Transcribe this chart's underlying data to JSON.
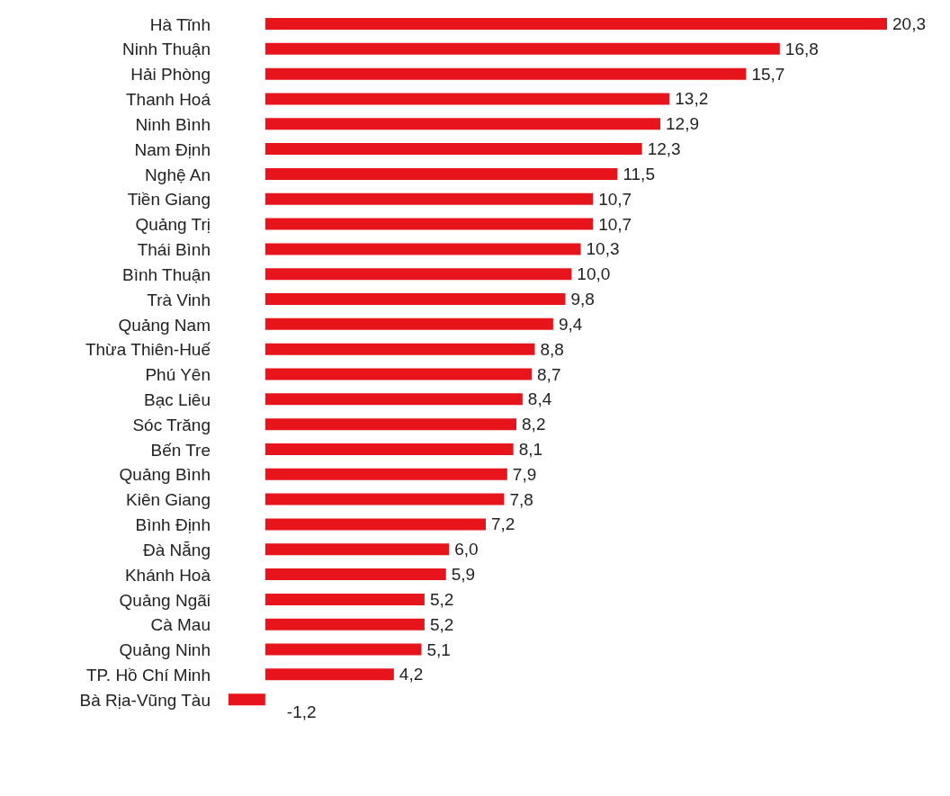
{
  "chart_data": {
    "type": "bar",
    "orientation": "horizontal",
    "color": "#e8141c",
    "categories": [
      "Hà Tĩnh",
      "Ninh Thuận",
      "Hải Phòng",
      "Thanh Hoá",
      "Ninh Bình",
      "Nam Định",
      "Nghệ An",
      "Tiền Giang",
      "Quảng Trị",
      "Thái Bình",
      "Bình Thuận",
      "Trà Vinh",
      "Quảng Nam",
      "Thừa Thiên-Huế",
      "Phú Yên",
      "Bạc Liêu",
      "Sóc Trăng",
      "Bến Tre",
      "Quảng Bình",
      "Kiên Giang",
      "Bình Định",
      "Đà Nẵng",
      "Khánh Hoà",
      "Quảng Ngãi",
      "Cà Mau",
      "Quảng Ninh",
      "TP. Hồ Chí Minh",
      "Bà Rịa-Vũng Tàu"
    ],
    "values": [
      20.3,
      16.8,
      15.7,
      13.2,
      12.9,
      12.3,
      11.5,
      10.7,
      10.7,
      10.3,
      10.0,
      9.8,
      9.4,
      8.8,
      8.7,
      8.4,
      8.2,
      8.1,
      7.9,
      7.8,
      7.2,
      6.0,
      5.9,
      5.2,
      5.2,
      5.1,
      4.2,
      -1.2
    ],
    "value_labels": [
      "20,3",
      "16,8",
      "15,7",
      "13,2",
      "12,9",
      "12,3",
      "11,5",
      "10,7",
      "10,7",
      "10,3",
      "10,0",
      "9,8",
      "9,4",
      "8,8",
      "8,7",
      "8,4",
      "8,2",
      "8,1",
      "7,9",
      "7,8",
      "7,2",
      "6,0",
      "5,9",
      "5,2",
      "5,2",
      "5,1",
      "4,2",
      "-1,2"
    ]
  }
}
